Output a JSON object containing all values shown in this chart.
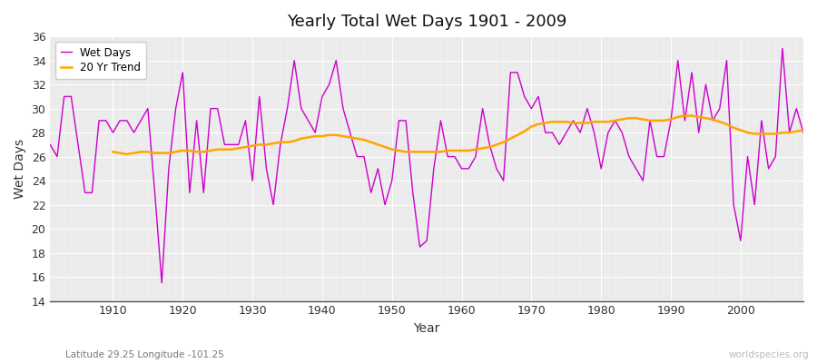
{
  "title": "Yearly Total Wet Days 1901 - 2009",
  "xlabel": "Year",
  "ylabel": "Wet Days",
  "subtitle": "Latitude 29.25 Longitude -101.25",
  "watermark": "worldspecies.org",
  "wet_days_color": "#cc00cc",
  "trend_color": "#ffa500",
  "background_color": "#f0f0f0",
  "plot_bg_color": "#ebebeb",
  "ylim": [
    14,
    36
  ],
  "yticks": [
    14,
    16,
    18,
    20,
    22,
    24,
    26,
    28,
    30,
    32,
    34,
    36
  ],
  "xlim": [
    1901,
    2009
  ],
  "years": [
    1901,
    1902,
    1903,
    1904,
    1905,
    1906,
    1907,
    1908,
    1909,
    1910,
    1911,
    1912,
    1913,
    1914,
    1915,
    1916,
    1917,
    1918,
    1919,
    1920,
    1921,
    1922,
    1923,
    1924,
    1925,
    1926,
    1927,
    1928,
    1929,
    1930,
    1931,
    1932,
    1933,
    1934,
    1935,
    1936,
    1937,
    1938,
    1939,
    1940,
    1941,
    1942,
    1943,
    1944,
    1945,
    1946,
    1947,
    1948,
    1949,
    1950,
    1951,
    1952,
    1953,
    1954,
    1955,
    1956,
    1957,
    1958,
    1959,
    1960,
    1961,
    1962,
    1963,
    1964,
    1965,
    1966,
    1967,
    1968,
    1969,
    1970,
    1971,
    1972,
    1973,
    1974,
    1975,
    1976,
    1977,
    1978,
    1979,
    1980,
    1981,
    1982,
    1983,
    1984,
    1985,
    1986,
    1987,
    1988,
    1989,
    1990,
    1991,
    1992,
    1993,
    1994,
    1995,
    1996,
    1997,
    1998,
    1999,
    2000,
    2001,
    2002,
    2003,
    2004,
    2005,
    2006,
    2007,
    2008,
    2009
  ],
  "wet_days": [
    27,
    26,
    31,
    31,
    27,
    23,
    23,
    29,
    29,
    28,
    29,
    29,
    28,
    29,
    30,
    23,
    15.5,
    25,
    30,
    33,
    23,
    29,
    23,
    30,
    30,
    27,
    27,
    27,
    29,
    24,
    31,
    25,
    22,
    27,
    30,
    34,
    30,
    29,
    28,
    31,
    32,
    34,
    30,
    28,
    26,
    26,
    23,
    25,
    22,
    24,
    29,
    29,
    23,
    18.5,
    19,
    25,
    29,
    26,
    26,
    25,
    25,
    26,
    30,
    27,
    25,
    24,
    33,
    33,
    31,
    30,
    31,
    28,
    28,
    27,
    28,
    29,
    28,
    30,
    28,
    25,
    28,
    29,
    28,
    26,
    25,
    24,
    29,
    26,
    26,
    29,
    34,
    29,
    33,
    28,
    32,
    29,
    30,
    34,
    22,
    19,
    26,
    22,
    29,
    25,
    26,
    35,
    28,
    30,
    28
  ],
  "trend_vals": [
    null,
    null,
    null,
    null,
    null,
    null,
    null,
    null,
    null,
    26.4,
    26.3,
    26.2,
    26.3,
    26.4,
    26.4,
    26.3,
    26.3,
    26.3,
    26.4,
    26.5,
    26.5,
    26.4,
    26.4,
    26.5,
    26.6,
    26.6,
    26.6,
    26.7,
    26.8,
    26.9,
    27.0,
    27.0,
    27.1,
    27.2,
    27.2,
    27.3,
    27.5,
    27.6,
    27.7,
    27.7,
    27.8,
    27.8,
    27.7,
    27.6,
    27.5,
    27.4,
    27.2,
    27.0,
    26.8,
    26.6,
    26.5,
    26.4,
    26.4,
    26.4,
    26.4,
    26.4,
    26.4,
    26.5,
    26.5,
    26.5,
    26.5,
    26.6,
    26.7,
    26.8,
    27.0,
    27.2,
    27.5,
    27.8,
    28.1,
    28.5,
    28.7,
    28.8,
    28.9,
    28.9,
    28.9,
    28.8,
    28.8,
    28.8,
    28.9,
    28.9,
    28.9,
    29.0,
    29.1,
    29.2,
    29.2,
    29.1,
    29.0,
    29.0,
    29.0,
    29.1,
    29.3,
    29.4,
    29.4,
    29.3,
    29.2,
    29.1,
    28.9,
    28.7,
    28.4,
    28.2,
    28.0,
    27.9,
    27.9,
    27.9,
    27.9,
    28.0,
    28.0,
    28.1,
    28.2
  ]
}
